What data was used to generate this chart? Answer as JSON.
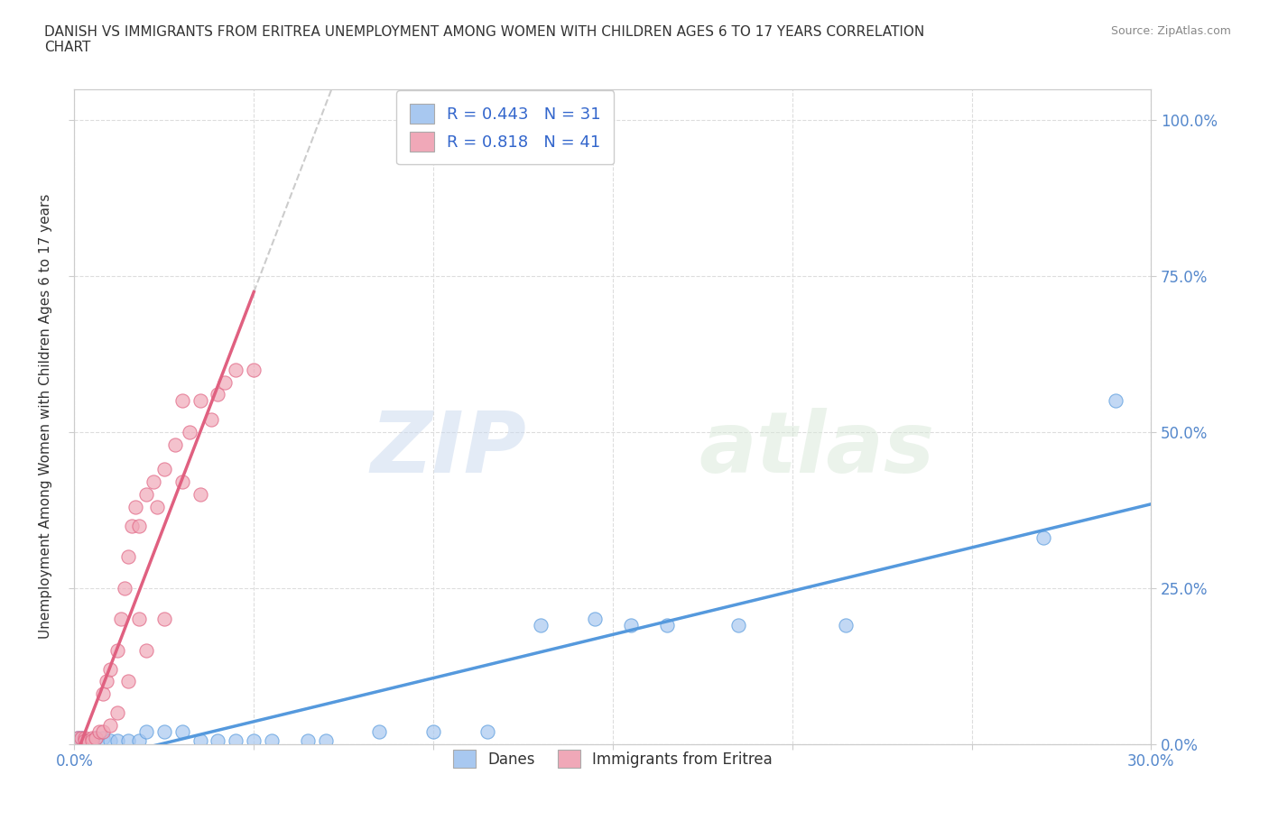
{
  "title": "DANISH VS IMMIGRANTS FROM ERITREA UNEMPLOYMENT AMONG WOMEN WITH CHILDREN AGES 6 TO 17 YEARS CORRELATION\nCHART",
  "source": "Source: ZipAtlas.com",
  "xlabel": "",
  "ylabel": "Unemployment Among Women with Children Ages 6 to 17 years",
  "xlim": [
    0.0,
    0.3
  ],
  "ylim": [
    0.0,
    1.05
  ],
  "xticks": [
    0.0,
    0.05,
    0.1,
    0.15,
    0.2,
    0.25,
    0.3
  ],
  "xticklabels": [
    "0.0%",
    "",
    "",
    "",
    "",
    "",
    "30.0%"
  ],
  "yticks": [
    0.0,
    0.25,
    0.5,
    0.75,
    1.0
  ],
  "yticklabels": [
    "0.0%",
    "25.0%",
    "50.0%",
    "75.0%",
    "100.0%"
  ],
  "danes_R": 0.443,
  "danes_N": 31,
  "eritrea_R": 0.818,
  "eritrea_N": 41,
  "danes_color": "#a8c8f0",
  "eritrea_color": "#f0a8b8",
  "danes_line_color": "#5599dd",
  "eritrea_line_color": "#e06080",
  "danes_scatter": [
    [
      0.001,
      0.01
    ],
    [
      0.002,
      0.01
    ],
    [
      0.003,
      0.005
    ],
    [
      0.005,
      0.005
    ],
    [
      0.006,
      0.01
    ],
    [
      0.008,
      0.01
    ],
    [
      0.01,
      0.005
    ],
    [
      0.012,
      0.005
    ],
    [
      0.015,
      0.005
    ],
    [
      0.018,
      0.005
    ],
    [
      0.02,
      0.02
    ],
    [
      0.025,
      0.02
    ],
    [
      0.03,
      0.02
    ],
    [
      0.035,
      0.005
    ],
    [
      0.04,
      0.005
    ],
    [
      0.045,
      0.005
    ],
    [
      0.05,
      0.005
    ],
    [
      0.055,
      0.005
    ],
    [
      0.065,
      0.005
    ],
    [
      0.07,
      0.005
    ],
    [
      0.085,
      0.02
    ],
    [
      0.1,
      0.02
    ],
    [
      0.115,
      0.02
    ],
    [
      0.13,
      0.19
    ],
    [
      0.145,
      0.2
    ],
    [
      0.155,
      0.19
    ],
    [
      0.165,
      0.19
    ],
    [
      0.185,
      0.19
    ],
    [
      0.215,
      0.19
    ],
    [
      0.27,
      0.33
    ],
    [
      0.29,
      0.55
    ]
  ],
  "eritrea_scatter": [
    [
      0.001,
      0.01
    ],
    [
      0.002,
      0.01
    ],
    [
      0.003,
      0.01
    ],
    [
      0.003,
      0.005
    ],
    [
      0.004,
      0.005
    ],
    [
      0.005,
      0.01
    ],
    [
      0.005,
      0.005
    ],
    [
      0.006,
      0.01
    ],
    [
      0.007,
      0.02
    ],
    [
      0.008,
      0.02
    ],
    [
      0.008,
      0.08
    ],
    [
      0.009,
      0.1
    ],
    [
      0.01,
      0.12
    ],
    [
      0.01,
      0.03
    ],
    [
      0.012,
      0.05
    ],
    [
      0.012,
      0.15
    ],
    [
      0.013,
      0.2
    ],
    [
      0.014,
      0.25
    ],
    [
      0.015,
      0.3
    ],
    [
      0.015,
      0.1
    ],
    [
      0.016,
      0.35
    ],
    [
      0.017,
      0.38
    ],
    [
      0.018,
      0.35
    ],
    [
      0.018,
      0.2
    ],
    [
      0.02,
      0.4
    ],
    [
      0.02,
      0.15
    ],
    [
      0.022,
      0.42
    ],
    [
      0.023,
      0.38
    ],
    [
      0.025,
      0.44
    ],
    [
      0.025,
      0.2
    ],
    [
      0.028,
      0.48
    ],
    [
      0.03,
      0.42
    ],
    [
      0.03,
      0.55
    ],
    [
      0.032,
      0.5
    ],
    [
      0.035,
      0.55
    ],
    [
      0.035,
      0.4
    ],
    [
      0.038,
      0.52
    ],
    [
      0.04,
      0.56
    ],
    [
      0.042,
      0.58
    ],
    [
      0.045,
      0.6
    ],
    [
      0.05,
      0.6
    ]
  ],
  "watermark_zip": "ZIP",
  "watermark_atlas": "atlas",
  "legend_danes_label": "R = 0.443   N = 31",
  "legend_eritrea_label": "R = 0.818   N = 41",
  "legend_bottom_danes": "Danes",
  "legend_bottom_eritrea": "Immigrants from Eritrea",
  "background_color": "#ffffff",
  "grid_color": "#dddddd"
}
